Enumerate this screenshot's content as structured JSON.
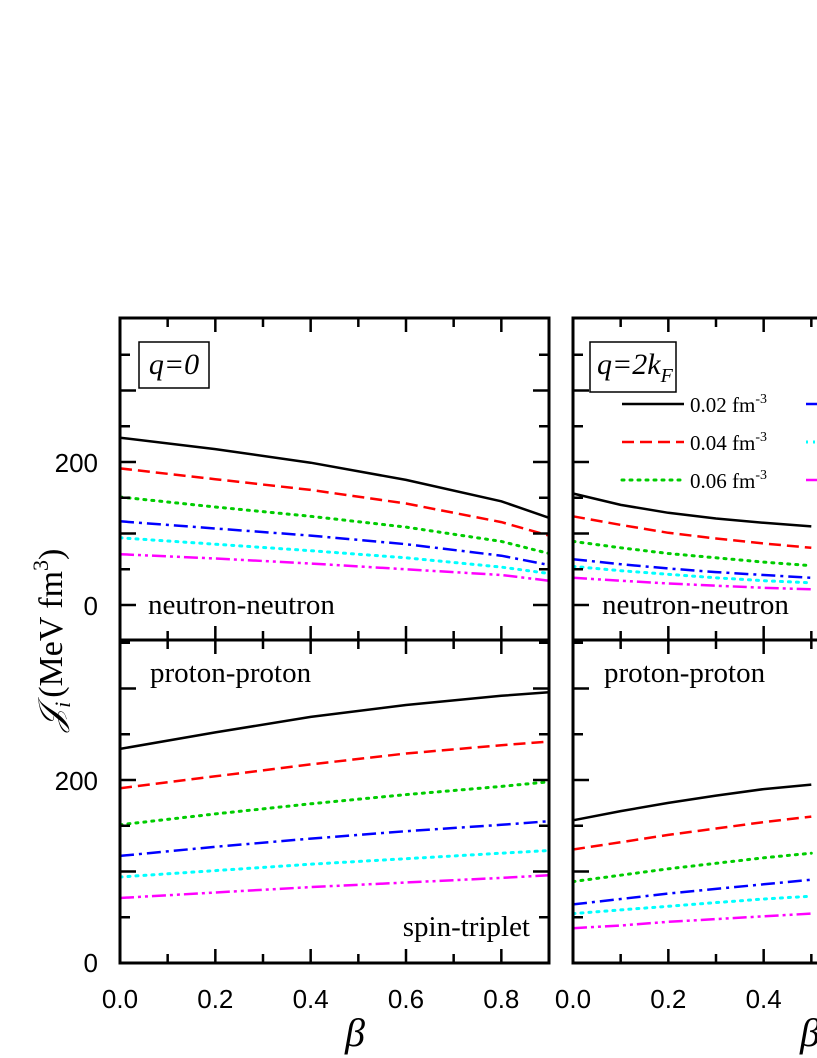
{
  "chart_data": {
    "type": "line",
    "xlabel": "β",
    "ylabel": {
      "symbol": "𝒥",
      "subscript": "i",
      "units_main": "(MeV fm",
      "units_exp": "3",
      "units_close": ")"
    },
    "xlim": [
      0,
      0.9
    ],
    "ylim": [
      -40,
      380
    ],
    "xticks": [
      "0.0",
      "0.2",
      "0.4",
      "0.6",
      "0.8"
    ],
    "yticks": [
      "0",
      "200"
    ],
    "legend": {
      "placement": "top-right",
      "entries": [
        {
          "label": "0.02 fm",
          "exp": "-3",
          "color": "#000000",
          "dash": "solid"
        },
        {
          "label": "0.04 fm",
          "exp": "-3",
          "color": "#ff0000",
          "dash": "dashed"
        },
        {
          "label": "0.06 fm",
          "exp": "-3",
          "color": "#00cc00",
          "dash": "dotted"
        },
        {
          "label": "",
          "exp": "",
          "color": "#0000ff",
          "dash": "dashdot"
        },
        {
          "label": "",
          "exp": "",
          "color": "#00ffff",
          "dash": "dotted"
        },
        {
          "label": "",
          "exp": "",
          "color": "#ff00ff",
          "dash": "dashdotdot"
        }
      ]
    },
    "panels": [
      {
        "q_label": "q=0",
        "q_main": "q=2k",
        "q_sub": "",
        "top_label": "neutron-neutron",
        "bottom_label": "proton-proton",
        "note": "spin-triplet",
        "top_series": [
          {
            "color": "#000000",
            "dash": "solid",
            "x": [
              0,
              0.2,
              0.4,
              0.6,
              0.8,
              0.9
            ],
            "y": [
              234,
              218,
              199,
              175,
              145,
              122
            ]
          },
          {
            "color": "#ff0000",
            "dash": "dashed",
            "x": [
              0,
              0.2,
              0.4,
              0.6,
              0.8,
              0.9
            ],
            "y": [
              191,
              176,
              161,
              142,
              116,
              97
            ]
          },
          {
            "color": "#00cc00",
            "dash": "dotted",
            "x": [
              0,
              0.2,
              0.4,
              0.6,
              0.8,
              0.9
            ],
            "y": [
              151,
              137,
              124,
              109,
              89,
              72
            ]
          },
          {
            "color": "#0000ff",
            "dash": "dashdot",
            "x": [
              0,
              0.2,
              0.4,
              0.6,
              0.8,
              0.9
            ],
            "y": [
              117,
              107,
              97,
              85,
              69,
              56
            ]
          },
          {
            "color": "#00ffff",
            "dash": "dotted",
            "x": [
              0,
              0.2,
              0.4,
              0.6,
              0.8,
              0.9
            ],
            "y": [
              94,
              85,
              76,
              66,
              53,
              44
            ]
          },
          {
            "color": "#ff00ff",
            "dash": "dashdotdot",
            "x": [
              0,
              0.2,
              0.4,
              0.6,
              0.8,
              0.9
            ],
            "y": [
              71,
              65,
              58,
              50,
              42,
              34
            ]
          }
        ],
        "bottom_series": [
          {
            "color": "#000000",
            "dash": "solid",
            "x": [
              0,
              0.2,
              0.4,
              0.6,
              0.8,
              0.9
            ],
            "y": [
              234,
              252,
              269,
              282,
              292,
              296
            ]
          },
          {
            "color": "#ff0000",
            "dash": "dashed",
            "x": [
              0,
              0.2,
              0.4,
              0.6,
              0.8,
              0.9
            ],
            "y": [
              191,
              204,
              217,
              229,
              238,
              242
            ]
          },
          {
            "color": "#00cc00",
            "dash": "dotted",
            "x": [
              0,
              0.2,
              0.4,
              0.6,
              0.8,
              0.9
            ],
            "y": [
              151,
              163,
              174,
              184,
              193,
              198
            ]
          },
          {
            "color": "#0000ff",
            "dash": "dashdot",
            "x": [
              0,
              0.2,
              0.4,
              0.6,
              0.8,
              0.9
            ],
            "y": [
              117,
              127,
              136,
              144,
              151,
              155
            ]
          },
          {
            "color": "#00ffff",
            "dash": "dotted",
            "x": [
              0,
              0.2,
              0.4,
              0.6,
              0.8,
              0.9
            ],
            "y": [
              94,
              101,
              108,
              114,
              120,
              123
            ]
          },
          {
            "color": "#ff00ff",
            "dash": "dashdotdot",
            "x": [
              0,
              0.2,
              0.4,
              0.6,
              0.8,
              0.9
            ],
            "y": [
              71,
              77,
              83,
              88,
              93,
              96
            ]
          }
        ]
      },
      {
        "q_label": "",
        "q_main": "q=2k",
        "q_sub": "F",
        "top_label": "neutron-neutron",
        "bottom_label": "proton-proton",
        "note": "",
        "top_series": [
          {
            "color": "#000000",
            "dash": "solid",
            "x": [
              0,
              0.1,
              0.2,
              0.3,
              0.4,
              0.5
            ],
            "y": [
              156,
              140,
              129,
              121,
              115,
              110
            ]
          },
          {
            "color": "#ff0000",
            "dash": "dashed",
            "x": [
              0,
              0.1,
              0.2,
              0.3,
              0.4,
              0.5
            ],
            "y": [
              124,
              112,
              101,
              93,
              86,
              80
            ]
          },
          {
            "color": "#00cc00",
            "dash": "dotted",
            "x": [
              0,
              0.1,
              0.2,
              0.3,
              0.4,
              0.5
            ],
            "y": [
              89,
              80,
              72,
              66,
              60,
              55
            ]
          },
          {
            "color": "#0000ff",
            "dash": "dashdot",
            "x": [
              0,
              0.1,
              0.2,
              0.3,
              0.4,
              0.5
            ],
            "y": [
              64,
              57,
              51,
              46,
              42,
              38
            ]
          },
          {
            "color": "#00ffff",
            "dash": "dotted",
            "x": [
              0,
              0.1,
              0.2,
              0.3,
              0.4,
              0.5
            ],
            "y": [
              54,
              48,
              43,
              38,
              34,
              31
            ]
          },
          {
            "color": "#ff00ff",
            "dash": "dashdotdot",
            "x": [
              0,
              0.1,
              0.2,
              0.3,
              0.4,
              0.5
            ],
            "y": [
              38,
              34,
              30,
              27,
              24,
              22
            ]
          }
        ],
        "bottom_series": [
          {
            "color": "#000000",
            "dash": "solid",
            "x": [
              0,
              0.1,
              0.2,
              0.3,
              0.4,
              0.5
            ],
            "y": [
              156,
              166,
              175,
              183,
              190,
              195
            ]
          },
          {
            "color": "#ff0000",
            "dash": "dashed",
            "x": [
              0,
              0.1,
              0.2,
              0.3,
              0.4,
              0.5
            ],
            "y": [
              124,
              132,
              140,
              147,
              154,
              160
            ]
          },
          {
            "color": "#00cc00",
            "dash": "dotted",
            "x": [
              0,
              0.1,
              0.2,
              0.3,
              0.4,
              0.5
            ],
            "y": [
              89,
              96,
              103,
              109,
              115,
              120
            ]
          },
          {
            "color": "#0000ff",
            "dash": "dashdot",
            "x": [
              0,
              0.1,
              0.2,
              0.3,
              0.4,
              0.5
            ],
            "y": [
              64,
              70,
              76,
              81,
              86,
              91
            ]
          },
          {
            "color": "#00ffff",
            "dash": "dotted",
            "x": [
              0,
              0.1,
              0.2,
              0.3,
              0.4,
              0.5
            ],
            "y": [
              54,
              58,
              62,
              66,
              70,
              73
            ]
          },
          {
            "color": "#ff00ff",
            "dash": "dashdotdot",
            "x": [
              0,
              0.1,
              0.2,
              0.3,
              0.4,
              0.5
            ],
            "y": [
              38,
              41,
              45,
              48,
              51,
              54
            ]
          }
        ]
      }
    ]
  }
}
